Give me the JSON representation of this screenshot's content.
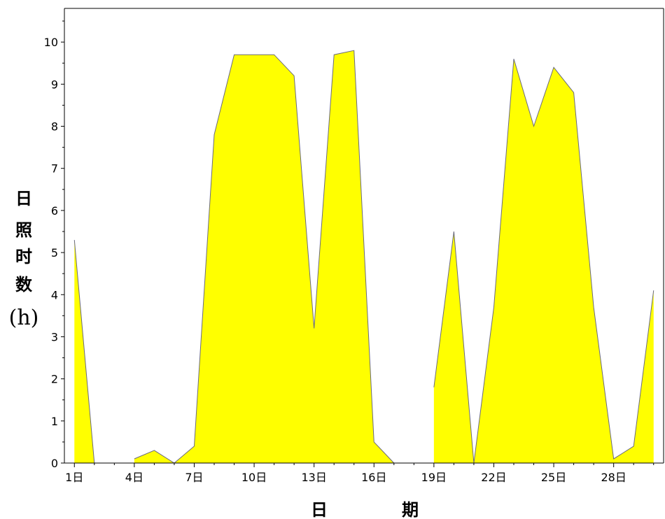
{
  "chart_data": {
    "type": "area",
    "title": "",
    "xlabel": "日　　　期",
    "xlabel_chars": [
      "日",
      "期"
    ],
    "ylabel": "日照时数(h)",
    "ylabel_chars": [
      "日",
      "照",
      "时",
      "数",
      "(h)"
    ],
    "x": [
      1,
      2,
      3,
      4,
      5,
      6,
      7,
      8,
      9,
      10,
      11,
      12,
      13,
      14,
      15,
      16,
      17,
      18,
      19,
      20,
      21,
      22,
      23,
      24,
      25,
      26,
      27,
      28,
      29,
      30
    ],
    "values": [
      5.3,
      0,
      null,
      0.1,
      0.3,
      0,
      0.4,
      7.8,
      9.7,
      9.7,
      9.7,
      9.2,
      3.2,
      9.7,
      9.8,
      0.5,
      0,
      null,
      1.8,
      5.5,
      0,
      3.7,
      9.6,
      8.0,
      9.4,
      8.8,
      3.7,
      0.1,
      0.4,
      4.1
    ],
    "xlim": [
      0.5,
      30.5
    ],
    "ylim": [
      0,
      10.8
    ],
    "x_tick_values": [
      1,
      4,
      7,
      10,
      13,
      16,
      19,
      22,
      25,
      28
    ],
    "x_tick_labels": [
      "1日",
      "4日",
      "7日",
      "10日",
      "13日",
      "16日",
      "19日",
      "22日",
      "25日",
      "28日"
    ],
    "y_ticks": [
      0,
      1,
      2,
      3,
      4,
      5,
      6,
      7,
      8,
      9,
      10
    ],
    "y_tick_labels": [
      "0",
      "1",
      "2",
      "3",
      "4",
      "5",
      "6",
      "7",
      "8",
      "9",
      "10"
    ],
    "grid": false,
    "legend": "none",
    "colors": {
      "fill": "#ffff00",
      "outline": "#6a6a7e",
      "axis": "#000000"
    }
  }
}
